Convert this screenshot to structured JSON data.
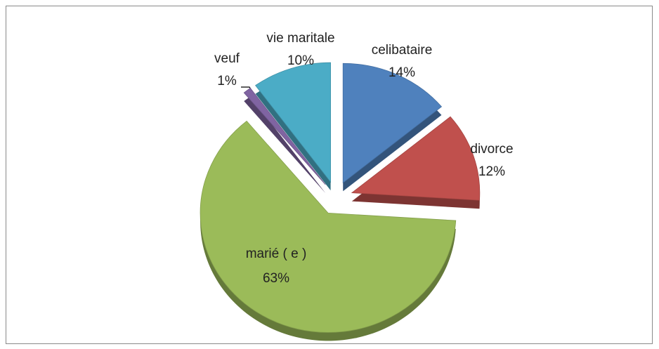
{
  "chart_data": {
    "type": "pie",
    "categories": [
      "celibataire",
      "divorce",
      "marié ( e )",
      "veuf",
      "vie maritale"
    ],
    "values": [
      14,
      12,
      63,
      1,
      10
    ],
    "value_labels": [
      "14%",
      "12%",
      "63%",
      "1%",
      "10%"
    ],
    "colors": [
      "#4f81bd",
      "#c0504d",
      "#9bbb59",
      "#8064a2",
      "#4bacc6"
    ]
  }
}
